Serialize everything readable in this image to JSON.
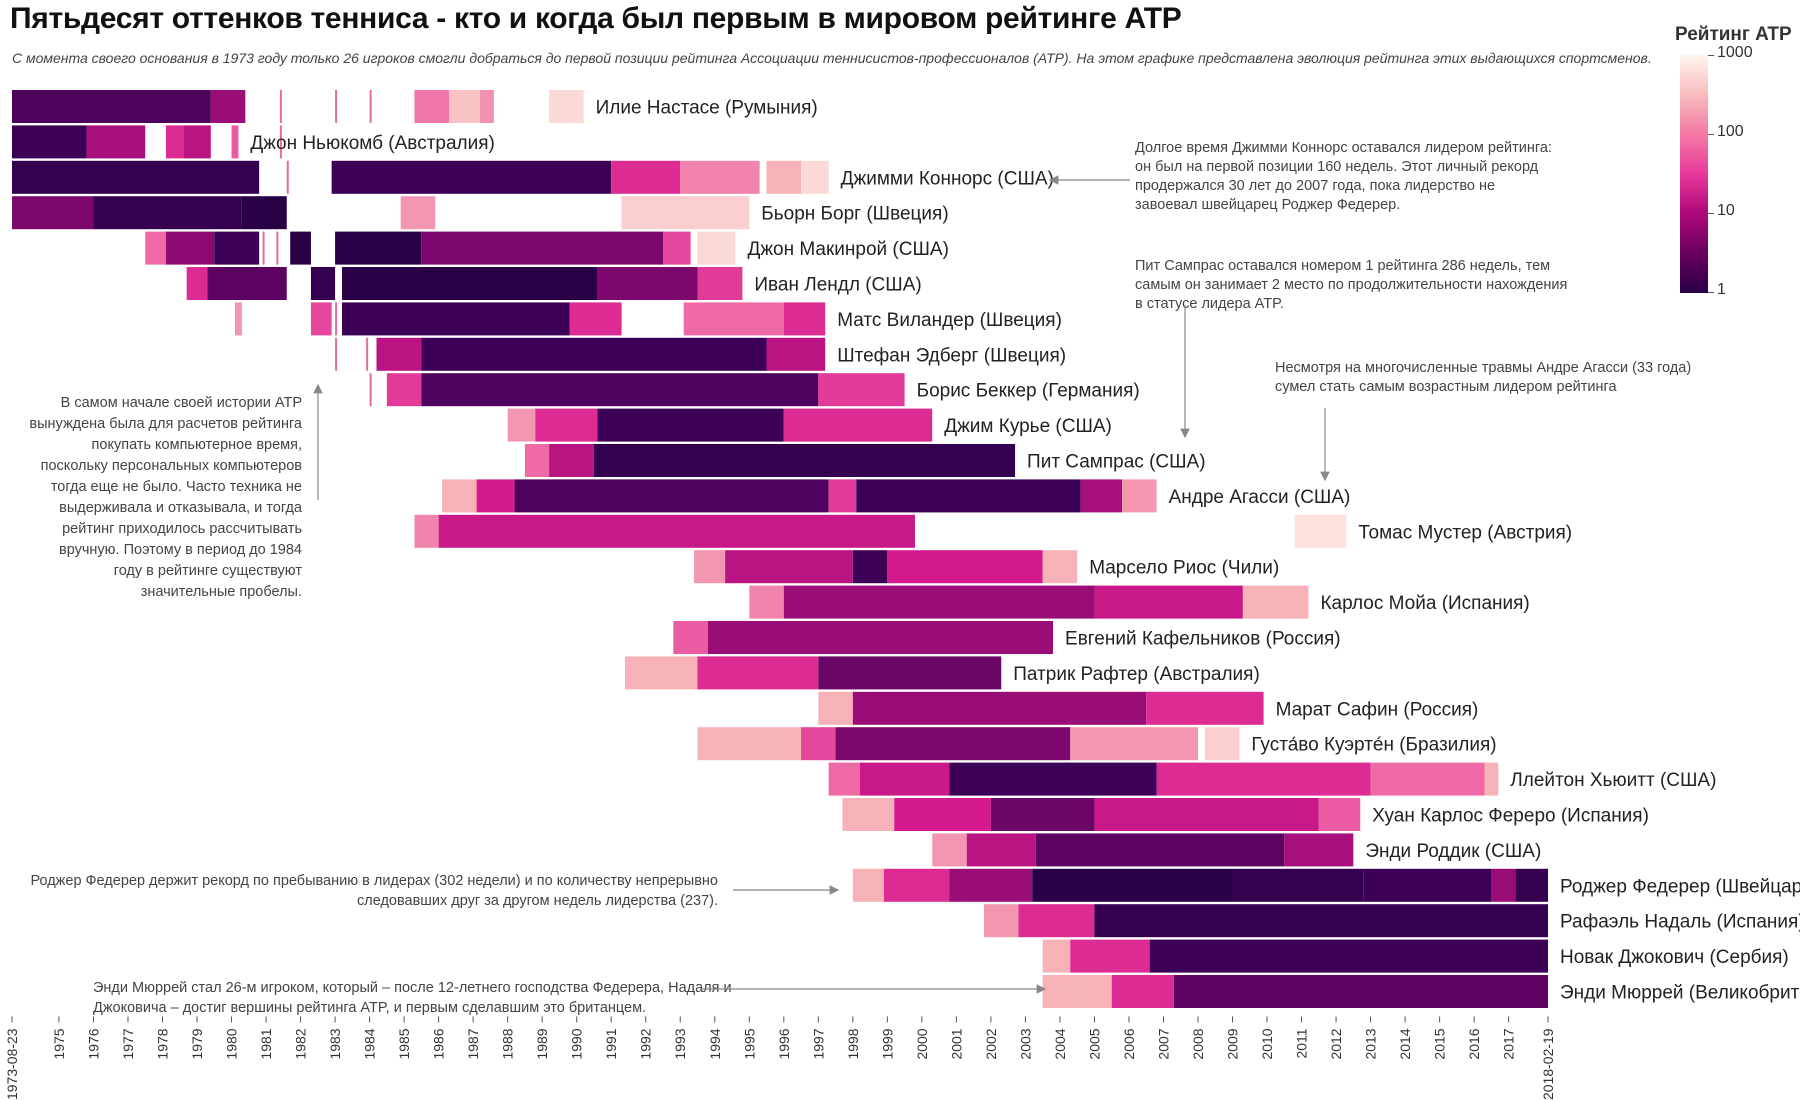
{
  "title": "Пятьдесят оттенков тенниса - кто и когда был первым в мировом рейтинге ATP",
  "subtitle": "С момента своего основания в 1973 году только 26 игроков смогли добраться до первой позиции рейтинга Ассоциации теннисистов-профессионалов (ATP). На этом графике представлена эволюция рейтинга этих выдающихся спортсменов.",
  "legend": {
    "title": "Рейтинг ATP",
    "labels": [
      "1000",
      "100",
      "10",
      "1"
    ],
    "scale": "log",
    "colors": [
      "#fff5f0",
      "#f7b5b8",
      "#ee6aa6",
      "#d81b8e",
      "#8d0a72",
      "#3d0057",
      "#290046"
    ]
  },
  "chart_data": {
    "type": "heatmap",
    "x_tick_labels": [
      "1973-08-23",
      "1975",
      "1976",
      "1977",
      "1978",
      "1979",
      "1980",
      "1981",
      "1982",
      "1983",
      "1984",
      "1985",
      "1986",
      "1987",
      "1988",
      "1989",
      "1990",
      "1991",
      "1992",
      "1993",
      "1994",
      "1995",
      "1996",
      "1997",
      "1998",
      "1999",
      "2000",
      "2001",
      "2002",
      "2003",
      "2004",
      "2005",
      "2006",
      "2007",
      "2008",
      "2009",
      "2010",
      "2011",
      "2012",
      "2013",
      "2014",
      "2015",
      "2016",
      "2017",
      "2018-02-19"
    ],
    "xlim": [
      1973.64,
      2018.14
    ],
    "color_scale": "log",
    "color_domain": [
      1,
      1000
    ],
    "players": [
      {
        "name": "Илие Настасе (Румыния)",
        "segments": [
          {
            "start": 1973.64,
            "end": 1979.4,
            "rank": 4
          },
          {
            "start": 1979.4,
            "end": 1980.4,
            "rank": 12
          },
          {
            "start": 1985.3,
            "end": 1986.3,
            "rank": 120
          },
          {
            "start": 1986.3,
            "end": 1987.2,
            "rank": 400
          },
          {
            "start": 1987.2,
            "end": 1987.6,
            "rank": 180
          },
          {
            "start": 1989.2,
            "end": 1990.2,
            "rank": 600
          }
        ],
        "dots": [
          1981.4,
          1983.0,
          1984.0
        ]
      },
      {
        "name": "Джон Ньюкомб (Австралия)",
        "segments": [
          {
            "start": 1973.64,
            "end": 1975.8,
            "rank": 3
          },
          {
            "start": 1975.8,
            "end": 1977.5,
            "rank": 15
          },
          {
            "start": 1978.1,
            "end": 1978.6,
            "rank": 40
          },
          {
            "start": 1978.6,
            "end": 1979.4,
            "rank": 20
          },
          {
            "start": 1980.0,
            "end": 1980.2,
            "rank": 80
          }
        ],
        "dots": [
          1981.4
        ]
      },
      {
        "name": "Джимми Коннорс (США)",
        "segments": [
          {
            "start": 1973.64,
            "end": 1980.8,
            "rank": 2
          },
          {
            "start": 1982.9,
            "end": 1991.0,
            "rank": 3
          },
          {
            "start": 1991.0,
            "end": 1993.0,
            "rank": 40
          },
          {
            "start": 1993.0,
            "end": 1995.3,
            "rank": 150
          },
          {
            "start": 1995.5,
            "end": 1996.5,
            "rank": 300
          },
          {
            "start": 1996.5,
            "end": 1997.3,
            "rank": 600
          }
        ],
        "dots": [
          1981.6
        ]
      },
      {
        "name": "Бьорн Борг (Швеция)",
        "segments": [
          {
            "start": 1973.64,
            "end": 1976.0,
            "rank": 8
          },
          {
            "start": 1976.0,
            "end": 1980.3,
            "rank": 2
          },
          {
            "start": 1980.3,
            "end": 1981.6,
            "rank": 1
          },
          {
            "start": 1984.9,
            "end": 1985.9,
            "rank": 200
          },
          {
            "start": 1991.3,
            "end": 1995.0,
            "rank": 500
          }
        ],
        "dots": []
      },
      {
        "name": "Джон Макинрой (США)",
        "segments": [
          {
            "start": 1977.5,
            "end": 1978.1,
            "rank": 100
          },
          {
            "start": 1978.1,
            "end": 1979.5,
            "rank": 10
          },
          {
            "start": 1979.5,
            "end": 1980.8,
            "rank": 3
          },
          {
            "start": 1981.7,
            "end": 1982.3,
            "rank": 1
          },
          {
            "start": 1983.0,
            "end": 1985.5,
            "rank": 1
          },
          {
            "start": 1985.5,
            "end": 1992.5,
            "rank": 8
          },
          {
            "start": 1992.5,
            "end": 1993.3,
            "rank": 60
          },
          {
            "start": 1993.5,
            "end": 1994.6,
            "rank": 600
          }
        ],
        "dots": [
          1980.9,
          1981.3
        ]
      },
      {
        "name": "Иван Лендл (США)",
        "segments": [
          {
            "start": 1978.7,
            "end": 1979.3,
            "rank": 40
          },
          {
            "start": 1979.3,
            "end": 1981.6,
            "rank": 5
          },
          {
            "start": 1982.3,
            "end": 1983.0,
            "rank": 2
          },
          {
            "start": 1983.2,
            "end": 1990.6,
            "rank": 1
          },
          {
            "start": 1990.6,
            "end": 1993.5,
            "rank": 8
          },
          {
            "start": 1993.5,
            "end": 1994.8,
            "rank": 50
          }
        ],
        "dots": []
      },
      {
        "name": "Матс Виландер (Швеция)",
        "segments": [
          {
            "start": 1980.1,
            "end": 1980.3,
            "rank": 200
          },
          {
            "start": 1982.3,
            "end": 1982.9,
            "rank": 60
          },
          {
            "start": 1983.2,
            "end": 1989.8,
            "rank": 3
          },
          {
            "start": 1989.8,
            "end": 1991.3,
            "rank": 40
          },
          {
            "start": 1993.1,
            "end": 1996.0,
            "rank": 100
          },
          {
            "start": 1996.0,
            "end": 1997.2,
            "rank": 40
          }
        ],
        "dots": [
          1983.0
        ]
      },
      {
        "name": "Штефан Эдберг (Швеция)",
        "segments": [
          {
            "start": 1984.2,
            "end": 1985.5,
            "rank": 20
          },
          {
            "start": 1985.5,
            "end": 1995.5,
            "rank": 3
          },
          {
            "start": 1995.5,
            "end": 1997.2,
            "rank": 20
          }
        ],
        "dots": [
          1983.0,
          1983.9
        ]
      },
      {
        "name": "Борис Беккер (Германия)",
        "segments": [
          {
            "start": 1984.5,
            "end": 1985.5,
            "rank": 50
          },
          {
            "start": 1985.5,
            "end": 1997.0,
            "rank": 4
          },
          {
            "start": 1997.0,
            "end": 1999.5,
            "rank": 50
          }
        ],
        "dots": [
          1984.0
        ]
      },
      {
        "name": "Джим Курье (США)",
        "segments": [
          {
            "start": 1988.0,
            "end": 1988.8,
            "rank": 200
          },
          {
            "start": 1988.8,
            "end": 1990.6,
            "rank": 40
          },
          {
            "start": 1990.6,
            "end": 1996.0,
            "rank": 3
          },
          {
            "start": 1996.0,
            "end": 2000.3,
            "rank": 40
          }
        ],
        "dots": []
      },
      {
        "name": "Пит Сампрас (США)",
        "segments": [
          {
            "start": 1988.5,
            "end": 1989.2,
            "rank": 100
          },
          {
            "start": 1989.2,
            "end": 1990.5,
            "rank": 20
          },
          {
            "start": 1990.5,
            "end": 2002.7,
            "rank": 2
          }
        ],
        "dots": []
      },
      {
        "name": "Андре Агасси (США)",
        "segments": [
          {
            "start": 1986.1,
            "end": 1987.1,
            "rank": 300
          },
          {
            "start": 1987.1,
            "end": 1988.2,
            "rank": 30
          },
          {
            "start": 1988.2,
            "end": 1997.3,
            "rank": 4
          },
          {
            "start": 1997.3,
            "end": 1998.1,
            "rank": 50
          },
          {
            "start": 1998.1,
            "end": 2004.6,
            "rank": 3
          },
          {
            "start": 2004.6,
            "end": 2005.8,
            "rank": 15
          },
          {
            "start": 2005.8,
            "end": 2006.8,
            "rank": 200
          }
        ],
        "dots": []
      },
      {
        "name": "Томас Мустер (Австрия)",
        "segments": [
          {
            "start": 1985.3,
            "end": 1986.0,
            "rank": 150
          },
          {
            "start": 1986.0,
            "end": 1999.8,
            "rank": 25
          },
          {
            "start": 2010.8,
            "end": 2012.3,
            "rank": 700
          }
        ],
        "dots": []
      },
      {
        "name": "Марсело Риос (Чили)",
        "segments": [
          {
            "start": 1993.4,
            "end": 1994.3,
            "rank": 200
          },
          {
            "start": 1994.3,
            "end": 1998.0,
            "rank": 20
          },
          {
            "start": 1998.0,
            "end": 1999.0,
            "rank": 3
          },
          {
            "start": 1999.0,
            "end": 2003.5,
            "rank": 30
          },
          {
            "start": 2003.5,
            "end": 2004.5,
            "rank": 300
          }
        ],
        "dots": []
      },
      {
        "name": "Карлос Мойа (Испания)",
        "segments": [
          {
            "start": 1995.0,
            "end": 1996.0,
            "rank": 150
          },
          {
            "start": 1996.0,
            "end": 2005.0,
            "rank": 12
          },
          {
            "start": 2005.0,
            "end": 2009.3,
            "rank": 25
          },
          {
            "start": 2009.3,
            "end": 2011.2,
            "rank": 300
          }
        ],
        "dots": []
      },
      {
        "name": "Евгений Кафельников (Россия)",
        "segments": [
          {
            "start": 1992.8,
            "end": 1993.8,
            "rank": 80
          },
          {
            "start": 1993.8,
            "end": 2003.8,
            "rank": 12
          }
        ],
        "dots": []
      },
      {
        "name": "Патрик Рафтер (Австралия)",
        "segments": [
          {
            "start": 1991.4,
            "end": 1993.5,
            "rank": 300
          },
          {
            "start": 1993.5,
            "end": 1997.0,
            "rank": 40
          },
          {
            "start": 1997.0,
            "end": 2002.3,
            "rank": 6
          }
        ],
        "dots": []
      },
      {
        "name": "Марат Сафин (Россия)",
        "segments": [
          {
            "start": 1997.0,
            "end": 1998.0,
            "rank": 300
          },
          {
            "start": 1998.0,
            "end": 2006.5,
            "rank": 12
          },
          {
            "start": 2006.5,
            "end": 2009.9,
            "rank": 40
          }
        ],
        "dots": []
      },
      {
        "name": "Густа́во Куэртéн (Бразилия)",
        "segments": [
          {
            "start": 1993.5,
            "end": 1996.5,
            "rank": 300
          },
          {
            "start": 1996.5,
            "end": 1997.5,
            "rank": 60
          },
          {
            "start": 1997.5,
            "end": 2004.3,
            "rank": 8
          },
          {
            "start": 2004.3,
            "end": 2008.0,
            "rank": 200
          },
          {
            "start": 2008.2,
            "end": 2009.2,
            "rank": 500
          }
        ],
        "dots": []
      },
      {
        "name": "Ллейтон Хьюитт (США)",
        "segments": [
          {
            "start": 1997.3,
            "end": 1998.2,
            "rank": 100
          },
          {
            "start": 1998.2,
            "end": 2000.8,
            "rank": 25
          },
          {
            "start": 2000.8,
            "end": 2006.8,
            "rank": 3
          },
          {
            "start": 2006.8,
            "end": 2013.0,
            "rank": 40
          },
          {
            "start": 2013.0,
            "end": 2016.3,
            "rank": 100
          },
          {
            "start": 2016.3,
            "end": 2016.7,
            "rank": 300
          }
        ],
        "dots": []
      },
      {
        "name": "Хуан Карлос Фереро (Испания)",
        "segments": [
          {
            "start": 1997.7,
            "end": 1999.2,
            "rank": 300
          },
          {
            "start": 1999.2,
            "end": 2002.0,
            "rank": 30
          },
          {
            "start": 2002.0,
            "end": 2005.0,
            "rank": 6
          },
          {
            "start": 2005.0,
            "end": 2011.5,
            "rank": 25
          },
          {
            "start": 2011.5,
            "end": 2012.7,
            "rank": 80
          }
        ],
        "dots": []
      },
      {
        "name": "Энди Роддик (США)",
        "segments": [
          {
            "start": 2000.3,
            "end": 2001.3,
            "rank": 200
          },
          {
            "start": 2001.3,
            "end": 2003.3,
            "rank": 20
          },
          {
            "start": 2003.3,
            "end": 2010.5,
            "rank": 5
          },
          {
            "start": 2010.5,
            "end": 2012.5,
            "rank": 15
          }
        ],
        "dots": []
      },
      {
        "name": "Роджер Федерер (Швейцария)",
        "segments": [
          {
            "start": 1998.0,
            "end": 1998.9,
            "rank": 300
          },
          {
            "start": 1998.9,
            "end": 2000.8,
            "rank": 40
          },
          {
            "start": 2000.8,
            "end": 2003.2,
            "rank": 12
          },
          {
            "start": 2003.2,
            "end": 2009.0,
            "rank": 1
          },
          {
            "start": 2009.0,
            "end": 2012.8,
            "rank": 2
          },
          {
            "start": 2012.8,
            "end": 2016.5,
            "rank": 3
          },
          {
            "start": 2016.5,
            "end": 2017.2,
            "rank": 12
          },
          {
            "start": 2017.2,
            "end": 2018.14,
            "rank": 2
          }
        ],
        "dots": []
      },
      {
        "name": "Рафаэль Надаль (Испания)",
        "segments": [
          {
            "start": 2001.8,
            "end": 2002.8,
            "rank": 200
          },
          {
            "start": 2002.8,
            "end": 2005.0,
            "rank": 40
          },
          {
            "start": 2005.0,
            "end": 2018.14,
            "rank": 2
          }
        ],
        "dots": []
      },
      {
        "name": "Новак Джокович (Сербия)",
        "segments": [
          {
            "start": 2003.5,
            "end": 2004.3,
            "rank": 300
          },
          {
            "start": 2004.3,
            "end": 2006.6,
            "rank": 40
          },
          {
            "start": 2006.6,
            "end": 2018.14,
            "rank": 3
          }
        ],
        "dots": []
      },
      {
        "name": "Энди Мюррей (Великобритания)",
        "segments": [
          {
            "start": 2003.5,
            "end": 2005.5,
            "rank": 300
          },
          {
            "start": 2005.5,
            "end": 2007.3,
            "rank": 40
          },
          {
            "start": 2007.3,
            "end": 2018.14,
            "rank": 5
          }
        ],
        "dots": []
      }
    ]
  },
  "annotations": [
    {
      "id": "connors",
      "lines": [
        "Долгое время Джимми Коннорс оставался лидером рейтинга:",
        "он был на первой позиции 160 недель. Этот личный рекорд",
        "продержался 30 лет до 2007 года, пока лидерство не",
        "завоевал швейцарец Роджер Федерер."
      ]
    },
    {
      "id": "sampras",
      "lines": [
        "Пит Сампрас оставался номером 1 рейтинга 286 недель, тем",
        "самым он занимает 2 место по продолжительности нахождения",
        "в статусе лидера ATP."
      ]
    },
    {
      "id": "agassi",
      "lines": [
        "Несмотря на многочисленные травмы Андре Агасси (33 года)",
        "сумел стать самым возрастным лидером рейтинга"
      ]
    },
    {
      "id": "atp-early",
      "lines": [
        "В самом начале своей истории ATP",
        "вынуждена была для расчетов рейтинга",
        "покупать компьютерное время,",
        "поскольку персональных компьютеров",
        "тогда еще не было. Часто техника не",
        "выдерживала и отказывала, и тогда",
        "рейтинг приходилось рассчитывать",
        "вручную. Поэтому в период до 1984",
        "году в рейтинге существуют",
        "значительные пробелы."
      ]
    },
    {
      "id": "federer",
      "lines": [
        "Роджер Федерер держит рекорд по пребыванию в лидерах (302 недели) и по количеству непрерывно",
        "следовавших друг за другом недель лидерства (237)."
      ]
    },
    {
      "id": "murray",
      "lines": [
        "Энди Мюррей стал 26-м игроком, который – после 12-летнего господства Федерера, Надаля и",
        "Джоковича – достиг вершины рейтинга ATP, и первым сделавшим это британцем."
      ]
    }
  ]
}
